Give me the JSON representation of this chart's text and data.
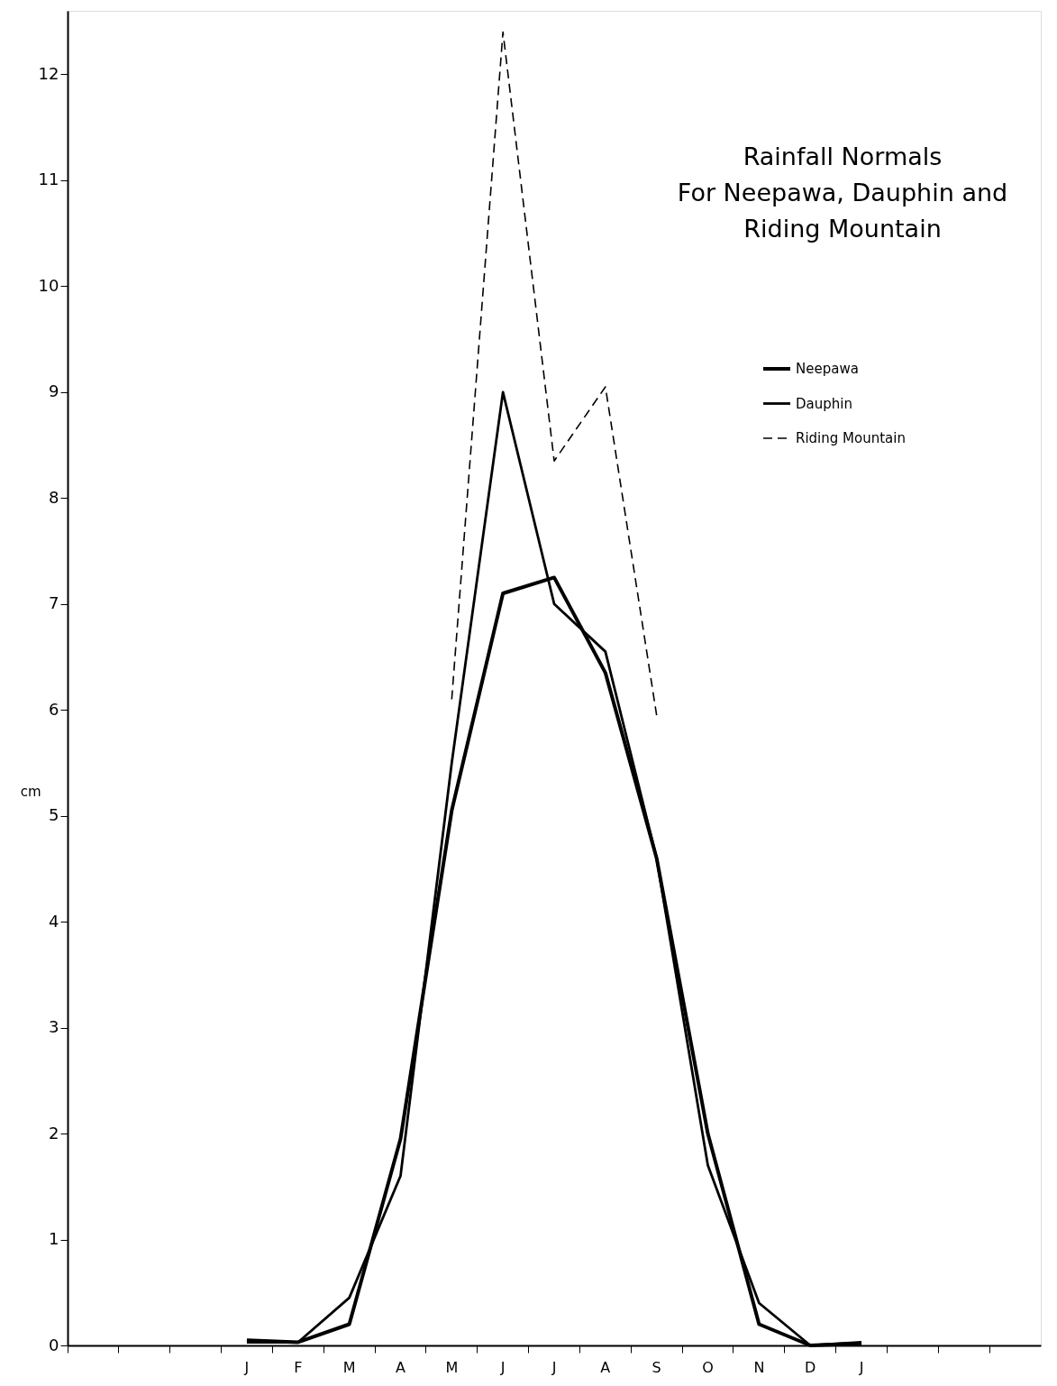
{
  "chart_data": {
    "type": "line",
    "title": "Rainfall  Normals\nFor Neepawa, Dauphin and\nRiding  Mountain",
    "ylabel": "cm",
    "categories": [
      null,
      null,
      null,
      "J",
      "F",
      "M",
      "A",
      "M",
      "J",
      "J",
      "A",
      "S",
      "O",
      "N",
      "D",
      "J",
      null,
      null,
      null
    ],
    "ylim": [
      0,
      12.6
    ],
    "yticks": [
      0,
      1,
      2,
      3,
      4,
      5,
      6,
      7,
      8,
      9,
      10,
      11,
      12
    ],
    "grid": false,
    "legend": "top right",
    "series": [
      {
        "name": "Neepawa",
        "color": "#000000",
        "line_style": "solid",
        "values": [
          null,
          null,
          null,
          0.05,
          0.03,
          0.2,
          1.95,
          5.05,
          7.1,
          7.25,
          6.35,
          4.6,
          2.0,
          0.2,
          0,
          0.02,
          null,
          null,
          null
        ]
      },
      {
        "name": "Dauphin",
        "color": "#000000",
        "line_style": "solid",
        "values": [
          null,
          null,
          null,
          0.03,
          0.03,
          0.45,
          1.6,
          5.5,
          9.0,
          7.0,
          6.55,
          4.6,
          1.7,
          0.4,
          0,
          0.03,
          null,
          null,
          null
        ]
      },
      {
        "name": "Riding Mountain",
        "color": "#000000",
        "line_style": "dashed",
        "values": [
          null,
          null,
          null,
          null,
          null,
          null,
          null,
          6.1,
          12.4,
          8.35,
          9.05,
          5.95,
          null,
          null,
          null,
          null,
          null,
          null,
          null
        ]
      }
    ]
  }
}
